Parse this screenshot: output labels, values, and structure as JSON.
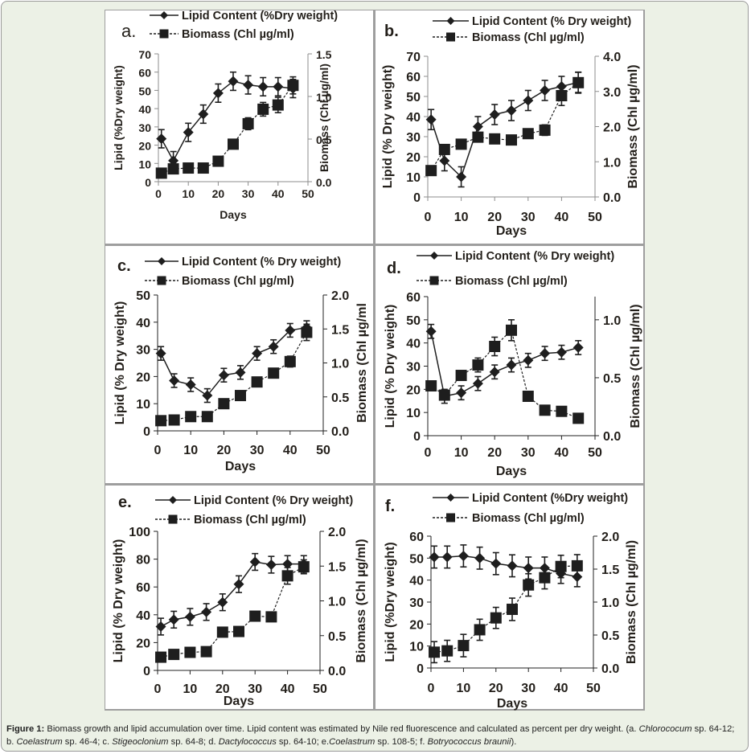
{
  "figure": {
    "caption_label": "Figure 1:",
    "caption_parts": [
      {
        "text": " Biomass growth and lipid accumulation over time. Lipid content was estimated by Nile red fluorescence and calculated as percent per dry weight. (a. ",
        "italic": false
      },
      {
        "text": "Chlorococum",
        "italic": true
      },
      {
        "text": " sp. 64-12; b. ",
        "italic": false
      },
      {
        "text": "Coelastrum",
        "italic": true
      },
      {
        "text": " sp. 46-4; c. ",
        "italic": false
      },
      {
        "text": "Stigeoclonium",
        "italic": true
      },
      {
        "text": " sp. 64-8; d. ",
        "italic": false
      },
      {
        "text": "Dactylococcus",
        "italic": true
      },
      {
        "text": " sp. 64-10; e.",
        "italic": false
      },
      {
        "text": "Coelastrum",
        "italic": true
      },
      {
        "text": " sp. 108-5; f. ",
        "italic": false
      },
      {
        "text": "Botryococcus braunii",
        "italic": true
      },
      {
        "text": ").",
        "italic": false
      }
    ]
  },
  "colors": {
    "series": "#1e1e1e",
    "axis_gray": "#8c8c8c",
    "panel_bg": "#ffffff",
    "frame_bg": "#ecf1e6",
    "divider": "#9e9e9e"
  },
  "chart_data": [
    {
      "panel": "a.",
      "type": "line",
      "title": "",
      "xlabel": "Days",
      "ylabel": "Lipid (%Dry weight)",
      "y2label": "Biomass (Chl µg/ml)",
      "x": [
        1,
        5,
        10,
        15,
        20,
        25,
        30,
        35,
        40,
        45
      ],
      "xlim": [
        0,
        50
      ],
      "xticks": [
        0,
        10,
        20,
        30,
        40,
        50
      ],
      "ylim": [
        0,
        70
      ],
      "yticks": [
        0,
        10,
        20,
        30,
        40,
        50,
        60,
        70
      ],
      "y2lim": [
        0,
        1.5
      ],
      "y2ticks": [
        "0.0",
        "0.5",
        "1.0",
        "1.5"
      ],
      "legend": "top",
      "series": [
        {
          "name": "Lipid Content (%Dry weight)",
          "axis": "left",
          "marker": "diamond",
          "line": "solid",
          "values": [
            23.5,
            11.5,
            27,
            37,
            48.5,
            55,
            53,
            52,
            52,
            51
          ],
          "error": [
            5,
            5,
            5,
            5,
            5,
            5,
            5,
            5,
            5,
            5
          ]
        },
        {
          "name": "Biomass (Chl µg/ml)",
          "axis": "right",
          "marker": "square",
          "line": "dashed",
          "values": [
            0.1,
            0.15,
            0.16,
            0.16,
            0.24,
            0.44,
            0.68,
            0.85,
            0.9,
            1.13
          ],
          "error": [
            0,
            0,
            0,
            0,
            0,
            0,
            0.07,
            0.08,
            0.09,
            0.1
          ]
        }
      ]
    },
    {
      "panel": "b.",
      "type": "line",
      "title": "",
      "xlabel": "Days",
      "ylabel": "Lipid (% Dry weight)",
      "y2label": "Biomass (Chl µg/ml)",
      "x": [
        1,
        5,
        10,
        15,
        20,
        25,
        30,
        35,
        40,
        45
      ],
      "xlim": [
        0,
        50
      ],
      "xticks": [
        0,
        10,
        20,
        30,
        40,
        50
      ],
      "ylim": [
        0,
        70
      ],
      "yticks": [
        0,
        10,
        20,
        30,
        40,
        50,
        60,
        70
      ],
      "y2lim": [
        0,
        4.0
      ],
      "y2ticks": [
        "0.0",
        "1.0",
        "2.0",
        "3.0",
        "4.0"
      ],
      "legend": "top",
      "series": [
        {
          "name": "Lipid Content (% Dry weight)",
          "axis": "left",
          "marker": "diamond",
          "line": "solid",
          "values": [
            38.5,
            18,
            10,
            35,
            41,
            43,
            48,
            53,
            55,
            57
          ],
          "error": [
            5,
            5,
            5,
            5,
            5,
            5,
            5,
            5,
            5,
            5
          ]
        },
        {
          "name": "Biomass (Chl µg/ml)",
          "axis": "right",
          "marker": "square",
          "line": "dashed",
          "values": [
            0.75,
            1.35,
            1.5,
            1.7,
            1.65,
            1.62,
            1.8,
            1.9,
            2.88,
            3.25
          ],
          "error": [
            0,
            0,
            0,
            0.1,
            0,
            0,
            0.1,
            0.15,
            0.28,
            0.3
          ]
        }
      ]
    },
    {
      "panel": "c.",
      "type": "line",
      "title": "",
      "xlabel": "Days",
      "ylabel": "Lipid  (% Dry weight)",
      "y2label": "Biomass (Chl µg/ml",
      "x": [
        1,
        5,
        10,
        15,
        20,
        25,
        30,
        35,
        40,
        45
      ],
      "xlim": [
        0,
        50
      ],
      "xticks": [
        0,
        10,
        20,
        30,
        40,
        50
      ],
      "ylim": [
        0,
        50
      ],
      "yticks": [
        0,
        10,
        20,
        30,
        40,
        50
      ],
      "y2lim": [
        0,
        2.0
      ],
      "y2ticks": [
        "0.0",
        "0.5",
        "1.0",
        "1.5",
        "2.0"
      ],
      "legend": "top",
      "series": [
        {
          "name": "Lipid Content (% Dry weight)",
          "axis": "left",
          "marker": "diamond",
          "line": "solid",
          "values": [
            28.5,
            18.5,
            17,
            13,
            20.5,
            21.5,
            28.5,
            31,
            37,
            38
          ],
          "error": [
            2.5,
            2.5,
            2.5,
            2.5,
            2.5,
            2.5,
            2.5,
            2.5,
            2.5,
            2.5
          ]
        },
        {
          "name": "Biomass (Chl µg/ml)",
          "axis": "right",
          "marker": "square",
          "line": "dashed",
          "values": [
            0.15,
            0.16,
            0.21,
            0.21,
            0.4,
            0.52,
            0.72,
            0.85,
            1.02,
            1.45
          ],
          "error": [
            0,
            0,
            0,
            0,
            0,
            0,
            0,
            0,
            0.08,
            0.12
          ]
        }
      ]
    },
    {
      "panel": "d.",
      "type": "line",
      "title": "",
      "xlabel": "Days",
      "ylabel": "Lipid (% Dry weight)",
      "y2label": "Biomass (Chl µg/ml)",
      "x": [
        1,
        5,
        10,
        15,
        20,
        25,
        30,
        35,
        40,
        45
      ],
      "xlim": [
        0,
        50
      ],
      "xticks": [
        0,
        10,
        20,
        30,
        40,
        50
      ],
      "ylim": [
        0,
        60
      ],
      "yticks": [
        0,
        10,
        20,
        30,
        40,
        50,
        60
      ],
      "y2lim": [
        0,
        1.2
      ],
      "y2ticks": [
        "0.0",
        "0.5",
        "1.0"
      ],
      "legend": "top",
      "series": [
        {
          "name": "Lipid Content (% Dry weight)",
          "axis": "left",
          "marker": "diamond",
          "line": "solid",
          "values": [
            45,
            17,
            18.5,
            22.5,
            27.5,
            30.5,
            32.5,
            35.5,
            36,
            38
          ],
          "error": [
            3,
            3,
            3,
            3,
            3,
            3,
            3,
            3,
            3,
            3
          ]
        },
        {
          "name": "Biomass (Chl µg/ml)",
          "axis": "right",
          "marker": "square",
          "line": "dashed",
          "values": [
            0.43,
            0.35,
            0.52,
            0.61,
            0.77,
            0.91,
            0.34,
            0.22,
            0.21,
            0.15
          ],
          "error": [
            0,
            0,
            0,
            0.06,
            0.08,
            0.09,
            0,
            0,
            0,
            0
          ]
        }
      ]
    },
    {
      "panel": "e.",
      "type": "line",
      "title": "",
      "xlabel": "Days",
      "ylabel": "Lipid (% Dry weight)",
      "y2label": "Biomass (Chl µg/ml)",
      "x": [
        1,
        5,
        10,
        15,
        20,
        25,
        30,
        35,
        40,
        45
      ],
      "xlim": [
        0,
        50
      ],
      "xticks": [
        0,
        10,
        20,
        30,
        40,
        50
      ],
      "ylim": [
        0,
        100
      ],
      "yticks": [
        0,
        20,
        40,
        60,
        80,
        100
      ],
      "y2lim": [
        0,
        2.0
      ],
      "y2ticks": [
        "0.0",
        "0.5",
        "1.0",
        "1.5",
        "2.0"
      ],
      "legend": "top",
      "series": [
        {
          "name": "Lipid Content (% Dry weight)",
          "axis": "left",
          "marker": "diamond",
          "line": "solid",
          "values": [
            31.5,
            36.5,
            38.5,
            42,
            49,
            62,
            78,
            76,
            76.5,
            76.5
          ],
          "error": [
            6,
            6,
            6,
            6,
            6,
            6,
            6,
            6,
            6,
            6
          ]
        },
        {
          "name": "Biomass (Chl µg/ml)",
          "axis": "right",
          "marker": "square",
          "line": "dashed",
          "values": [
            0.19,
            0.23,
            0.26,
            0.27,
            0.55,
            0.56,
            0.78,
            0.77,
            1.36,
            1.49
          ],
          "error": [
            0,
            0,
            0,
            0,
            0,
            0,
            0,
            0,
            0.12,
            0.1
          ]
        }
      ]
    },
    {
      "panel": "f.",
      "type": "line",
      "title": "",
      "xlabel": "Days",
      "ylabel": "Lipid (%Dry weight)",
      "y2label": "Biomass (Chl µg/ml)",
      "x": [
        1,
        5,
        10,
        15,
        20,
        25,
        30,
        35,
        40,
        45
      ],
      "xlim": [
        0,
        50
      ],
      "xticks": [
        0,
        10,
        20,
        30,
        40,
        50
      ],
      "ylim": [
        0,
        60
      ],
      "yticks": [
        0,
        10,
        20,
        30,
        40,
        50,
        60
      ],
      "y2lim": [
        0,
        2.0
      ],
      "y2ticks": [
        "0.0",
        "0.5",
        "1.0",
        "1.5",
        "2.0"
      ],
      "legend": "top",
      "series": [
        {
          "name": "Lipid Content (%Dry weight)",
          "axis": "left",
          "marker": "diamond",
          "line": "solid",
          "values": [
            50.5,
            50.5,
            51,
            50,
            47.5,
            46.5,
            45.5,
            45.5,
            43,
            41.5
          ],
          "error": [
            5,
            5,
            5,
            5,
            5,
            5,
            5,
            5,
            4.5,
            4.5
          ]
        },
        {
          "name": "Biomass (Chl µg/ml)",
          "axis": "right",
          "marker": "square",
          "line": "dashed",
          "values": [
            0.24,
            0.26,
            0.34,
            0.58,
            0.76,
            0.89,
            1.26,
            1.37,
            1.54,
            1.55
          ],
          "error": [
            0.16,
            0.16,
            0.17,
            0.16,
            0.16,
            0.17,
            0.17,
            0.17,
            0.17,
            0.17
          ]
        }
      ]
    }
  ]
}
